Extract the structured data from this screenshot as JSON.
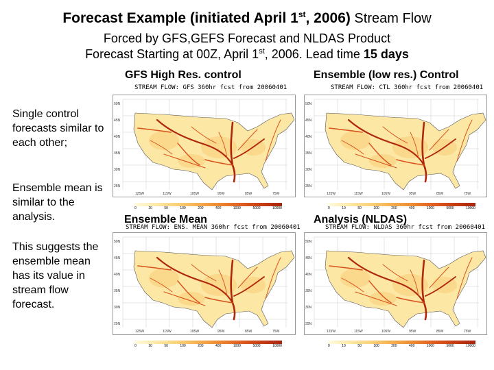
{
  "title": {
    "part1": "Forecast Example (initiated April 1",
    "sup": "st",
    "part2": ", 2006)",
    "part3": " Stream Flow"
  },
  "subtitle1": "Forced by GFS,GEFS Forecast and NLDAS Product",
  "subtitle2": {
    "part1": "Forecast Starting at 00Z, April 1",
    "sup": "st",
    "part2": ", 2006. Lead time ",
    "bold": "15 days"
  },
  "side_notes": [
    "Single control forecasts similar to each other;",
    "Ensemble mean is similar to the analysis.",
    "This suggests the ensemble mean has its value in stream flow forecast."
  ],
  "panels": [
    {
      "label": "GFS High Res. control",
      "map_title": "STREAM FLOW: GFS 360hr fcst from 20060401"
    },
    {
      "label": "Ensemble (low res.) Control",
      "map_title": "STREAM FLOW: CTL 360hr fcst from 20060401"
    },
    {
      "label": "Ensemble Mean",
      "map_title": "STREAM FLOW: ENS. MEAN 360hr fcst from 20060401"
    },
    {
      "label": "Analysis (NLDAS)",
      "map_title": "STREAM FLOW: NLDAS 360hr fcst from 20060401"
    }
  ],
  "colorbar": {
    "ticks": [
      "0",
      "10",
      "50",
      "100",
      "200",
      "400",
      "1000",
      "5000",
      "10000"
    ],
    "colors": [
      "#fffbe0",
      "#fde9a8",
      "#fad37a",
      "#f5b04f",
      "#ee8a32",
      "#e05f20",
      "#c83c14",
      "#a8240c"
    ]
  },
  "map_colors": {
    "land_light": "#fde7a5",
    "land_mid": "#f6c66e",
    "river_dark": "#b0280c",
    "river_mid": "#d9521c",
    "coast": "#555555",
    "grid": "#aaaaaa"
  }
}
